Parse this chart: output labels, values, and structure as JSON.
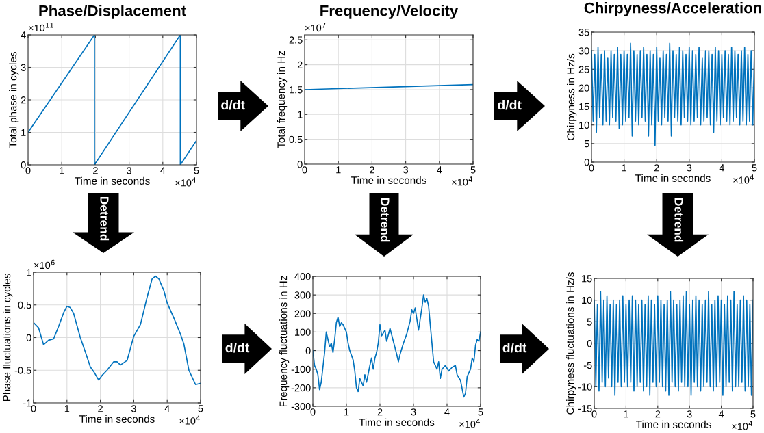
{
  "chart_data": [
    {
      "type": "line",
      "title": "Phase/Displacement",
      "xlabel": "Time in seconds",
      "ylabel": "Total phase in cycles",
      "series": [
        {
          "color": "#0072bd",
          "x": [
            0,
            1.97,
            1.97,
            4.52,
            4.52,
            5
          ],
          "values": [
            1,
            4,
            0,
            4,
            0,
            0.75
          ]
        }
      ],
      "xlim": [
        0,
        5
      ],
      "xticks": [
        0,
        1,
        2,
        3,
        4,
        5
      ],
      "ylim": [
        0,
        4
      ],
      "yticks": [
        0,
        1,
        2,
        3,
        4
      ],
      "grid": true,
      "annotations": [
        "×10$^{11}$",
        "×10$^{4}$",
        "d/dt",
        "Detrend"
      ]
    },
    {
      "type": "line",
      "title": "Frequency/Velocity",
      "xlabel": "Time in seconds",
      "ylabel": "Total frequency in Hz",
      "series": [
        {
          "color": "#0072bd",
          "x": [
            0,
            5
          ],
          "values": [
            1.5,
            1.6
          ]
        }
      ],
      "xlim": [
        0,
        5
      ],
      "xticks": [
        0,
        1,
        2,
        3,
        4,
        5
      ],
      "ylim": [
        0,
        2.6
      ],
      "yticks": [
        0,
        0.5,
        1,
        1.5,
        2,
        2.5
      ],
      "grid": true,
      "annotations": [
        "×10$^{7}$",
        "×10$^{4}$",
        "d/dt",
        "Detrend"
      ]
    },
    {
      "type": "line",
      "title": "Chirpyness/Acceleration",
      "xlabel": "Time in seconds",
      "ylabel": "Chirpyness in Hz/s",
      "series": [
        {
          "color": "#0072bd",
          "x": [
            0,
            0.05,
            0.1,
            0.15,
            0.2,
            0.25,
            0.3,
            0.35,
            0.4,
            0.45,
            0.5,
            0.55,
            0.6,
            0.65,
            0.7,
            0.75,
            0.8,
            0.85,
            0.9,
            0.95,
            1,
            1.05,
            1.1,
            1.15,
            1.2,
            1.25,
            1.3,
            1.35,
            1.4,
            1.45,
            1.5,
            1.55,
            1.6,
            1.65,
            1.7,
            1.75,
            1.8,
            1.85,
            1.9,
            1.95,
            2,
            2.05,
            2.1,
            2.15,
            2.2,
            2.25,
            2.3,
            2.35,
            2.4,
            2.45,
            2.5,
            2.55,
            2.6,
            2.65,
            2.7,
            2.75,
            2.8,
            2.85,
            2.9,
            2.95,
            3,
            3.05,
            3.1,
            3.15,
            3.2,
            3.25,
            3.3,
            3.35,
            3.4,
            3.45,
            3.5,
            3.55,
            3.6,
            3.65,
            3.7,
            3.75,
            3.8,
            3.85,
            3.9,
            3.95,
            4,
            4.05,
            4.1,
            4.15,
            4.2,
            4.25,
            4.3,
            4.35,
            4.4,
            4.45,
            4.5,
            4.55,
            4.6,
            4.65,
            4.7,
            4.75,
            4.8,
            4.85,
            4.9,
            4.95,
            5
          ],
          "values": [
            30,
            11,
            29,
            8,
            31,
            12,
            29,
            10,
            30,
            11,
            28,
            10,
            30,
            12,
            29,
            11,
            31,
            9,
            29,
            10,
            30,
            11,
            29,
            12,
            32,
            7,
            30,
            11,
            29,
            10,
            30,
            12,
            31,
            11,
            29,
            7,
            30,
            10,
            29,
            4.5,
            31,
            11,
            28,
            10,
            30,
            12,
            29,
            11,
            32,
            7,
            30,
            12,
            29,
            11,
            31,
            10,
            30,
            12,
            29,
            11,
            31,
            10,
            30,
            11,
            29,
            12,
            31,
            10,
            28,
            11,
            30,
            12,
            30,
            10,
            29,
            8,
            31,
            11,
            30,
            10,
            29,
            12,
            30,
            11,
            29,
            10,
            31,
            11,
            30,
            12,
            29,
            10,
            30,
            11,
            31,
            10,
            29,
            11,
            30,
            10,
            30
          ]
        }
      ],
      "xlim": [
        0,
        5
      ],
      "xticks": [
        0,
        1,
        2,
        3,
        4,
        5
      ],
      "ylim": [
        0,
        35
      ],
      "yticks": [
        0,
        5,
        10,
        15,
        20,
        25,
        30,
        35
      ],
      "grid": true,
      "annotations": [
        "×10$^{4}$",
        "Detrend"
      ]
    },
    {
      "type": "line",
      "xlabel": "Time in seconds",
      "ylabel": "Phase fluctuations in cycles",
      "series": [
        {
          "color": "#0072bd",
          "x": [
            0,
            0.15,
            0.3,
            0.45,
            0.6,
            0.75,
            0.9,
            1,
            1.1,
            1.2,
            1.4,
            1.55,
            1.7,
            1.8,
            1.95,
            2.05,
            2.2,
            2.4,
            2.5,
            2.6,
            2.8,
            3,
            3.2,
            3.4,
            3.55,
            3.65,
            3.75,
            3.9,
            4,
            4.2,
            4.4,
            4.5,
            4.65,
            4.85,
            5
          ],
          "values": [
            0.23,
            0.15,
            -0.11,
            -0.04,
            -0.02,
            0.17,
            0.38,
            0.48,
            0.46,
            0.37,
            0,
            -0.22,
            -0.45,
            -0.52,
            -0.65,
            -0.58,
            -0.5,
            -0.37,
            -0.37,
            -0.42,
            -0.35,
            0.02,
            0.2,
            0.62,
            0.9,
            0.94,
            0.9,
            0.72,
            0.53,
            0.3,
            0.05,
            -0.1,
            -0.5,
            -0.72,
            -0.7
          ]
        }
      ],
      "xlim": [
        0,
        5
      ],
      "xticks": [
        0,
        1,
        2,
        3,
        4,
        5
      ],
      "ylim": [
        -1,
        1
      ],
      "yticks": [
        -1,
        -0.5,
        0,
        0.5,
        1
      ],
      "grid": true,
      "annotations": [
        "×10$^{6}$",
        "×10$^{4}$",
        "d/dt"
      ]
    },
    {
      "type": "line",
      "xlabel": "Time in seconds",
      "ylabel": "Frequency fluctuations in Hz",
      "series": [
        {
          "color": "#0072bd",
          "x": [
            0,
            0.05,
            0.1,
            0.15,
            0.2,
            0.25,
            0.3,
            0.35,
            0.4,
            0.45,
            0.5,
            0.55,
            0.6,
            0.65,
            0.7,
            0.75,
            0.8,
            0.85,
            0.9,
            1,
            1.05,
            1.1,
            1.2,
            1.25,
            1.3,
            1.35,
            1.4,
            1.5,
            1.55,
            1.6,
            1.7,
            1.75,
            1.8,
            1.85,
            1.9,
            1.95,
            2,
            2.05,
            2.15,
            2.2,
            2.3,
            2.4,
            2.5,
            2.55,
            2.6,
            2.7,
            2.8,
            2.9,
            2.95,
            3,
            3.05,
            3.1,
            3.15,
            3.25,
            3.3,
            3.35,
            3.4,
            3.45,
            3.5,
            3.55,
            3.6,
            3.7,
            3.75,
            3.8,
            3.85,
            3.95,
            4.05,
            4.15,
            4.25,
            4.3,
            4.4,
            4.5,
            4.55,
            4.6,
            4.7,
            4.75,
            4.8,
            4.85,
            4.9,
            4.95,
            5
          ],
          "values": [
            0,
            -80,
            -100,
            -130,
            -210,
            -170,
            -90,
            -10,
            100,
            60,
            20,
            40,
            -10,
            60,
            150,
            180,
            130,
            150,
            140,
            100,
            40,
            0,
            -50,
            -110,
            -200,
            -220,
            -150,
            -190,
            -130,
            -170,
            -80,
            -40,
            -100,
            -40,
            -10,
            40,
            140,
            80,
            110,
            50,
            120,
            50,
            -20,
            -60,
            -20,
            40,
            90,
            160,
            220,
            200,
            230,
            170,
            110,
            230,
            300,
            260,
            280,
            240,
            140,
            40,
            -60,
            -100,
            -60,
            -150,
            -100,
            -80,
            -110,
            -90,
            -80,
            -130,
            -160,
            -250,
            -230,
            -140,
            -100,
            -40,
            -60,
            30,
            60,
            50,
            100
          ]
        }
      ],
      "xlim": [
        0,
        5
      ],
      "xticks": [
        0,
        1,
        2,
        3,
        4,
        5
      ],
      "ylim": [
        -300,
        400
      ],
      "yticks": [
        -300,
        -200,
        -100,
        0,
        100,
        200,
        300,
        400
      ],
      "grid": true,
      "annotations": [
        "×10$^{4}$",
        "d/dt"
      ]
    },
    {
      "type": "line",
      "xlabel": "Time in seconds",
      "ylabel": "Chirpyness fluctuations in Hz/s",
      "series": [
        {
          "color": "#0072bd",
          "x": [
            0,
            0.05,
            0.1,
            0.15,
            0.2,
            0.25,
            0.3,
            0.35,
            0.4,
            0.45,
            0.5,
            0.55,
            0.6,
            0.65,
            0.7,
            0.75,
            0.8,
            0.85,
            0.9,
            0.95,
            1,
            1.05,
            1.1,
            1.15,
            1.2,
            1.25,
            1.3,
            1.35,
            1.4,
            1.45,
            1.5,
            1.55,
            1.6,
            1.65,
            1.7,
            1.75,
            1.8,
            1.85,
            1.9,
            1.95,
            2,
            2.05,
            2.1,
            2.15,
            2.2,
            2.25,
            2.3,
            2.35,
            2.4,
            2.45,
            2.5,
            2.55,
            2.6,
            2.65,
            2.7,
            2.75,
            2.8,
            2.85,
            2.9,
            2.95,
            3,
            3.05,
            3.1,
            3.15,
            3.2,
            3.25,
            3.3,
            3.35,
            3.4,
            3.45,
            3.5,
            3.55,
            3.6,
            3.65,
            3.7,
            3.75,
            3.8,
            3.85,
            3.9,
            3.95,
            4,
            4.05,
            4.1,
            4.15,
            4.2,
            4.25,
            4.3,
            4.35,
            4.4,
            4.45,
            4.5,
            4.55,
            4.6,
            4.65,
            4.7,
            4.75,
            4.8,
            4.85,
            4.9,
            4.95,
            5
          ],
          "values": [
            10,
            -10,
            9,
            -11,
            12,
            -9,
            10,
            -10,
            11,
            -8,
            9,
            -10,
            10,
            -12,
            9,
            -9,
            10,
            -10,
            11,
            -9,
            9,
            -10,
            10,
            -9,
            11,
            -11,
            10,
            -10,
            9,
            -9,
            10,
            -11,
            9,
            -10,
            11,
            -12,
            10,
            -9,
            9,
            -10,
            11,
            -9,
            10,
            -10,
            9,
            -11,
            10,
            -12,
            12,
            -9,
            10,
            -10,
            9,
            -11,
            10,
            -9,
            11,
            -10,
            12,
            -10,
            9,
            -12,
            10,
            -9,
            11,
            -10,
            10,
            -11,
            9,
            -10,
            10,
            -9,
            12,
            -10,
            9,
            -11,
            10,
            -10,
            11,
            -9,
            10,
            -12,
            9,
            -10,
            11,
            -9,
            10,
            -11,
            12,
            -10,
            9,
            -10,
            10,
            -9,
            11,
            -11,
            10,
            -10,
            9,
            -12,
            10
          ]
        }
      ],
      "xlim": [
        0,
        5
      ],
      "xticks": [
        0,
        1,
        2,
        3,
        4,
        5
      ],
      "ylim": [
        -15,
        15
      ],
      "yticks": [
        -15,
        -10,
        -5,
        0,
        5,
        10,
        15
      ],
      "grid": true,
      "annotations": [
        "×10$^{4}$"
      ]
    }
  ]
}
